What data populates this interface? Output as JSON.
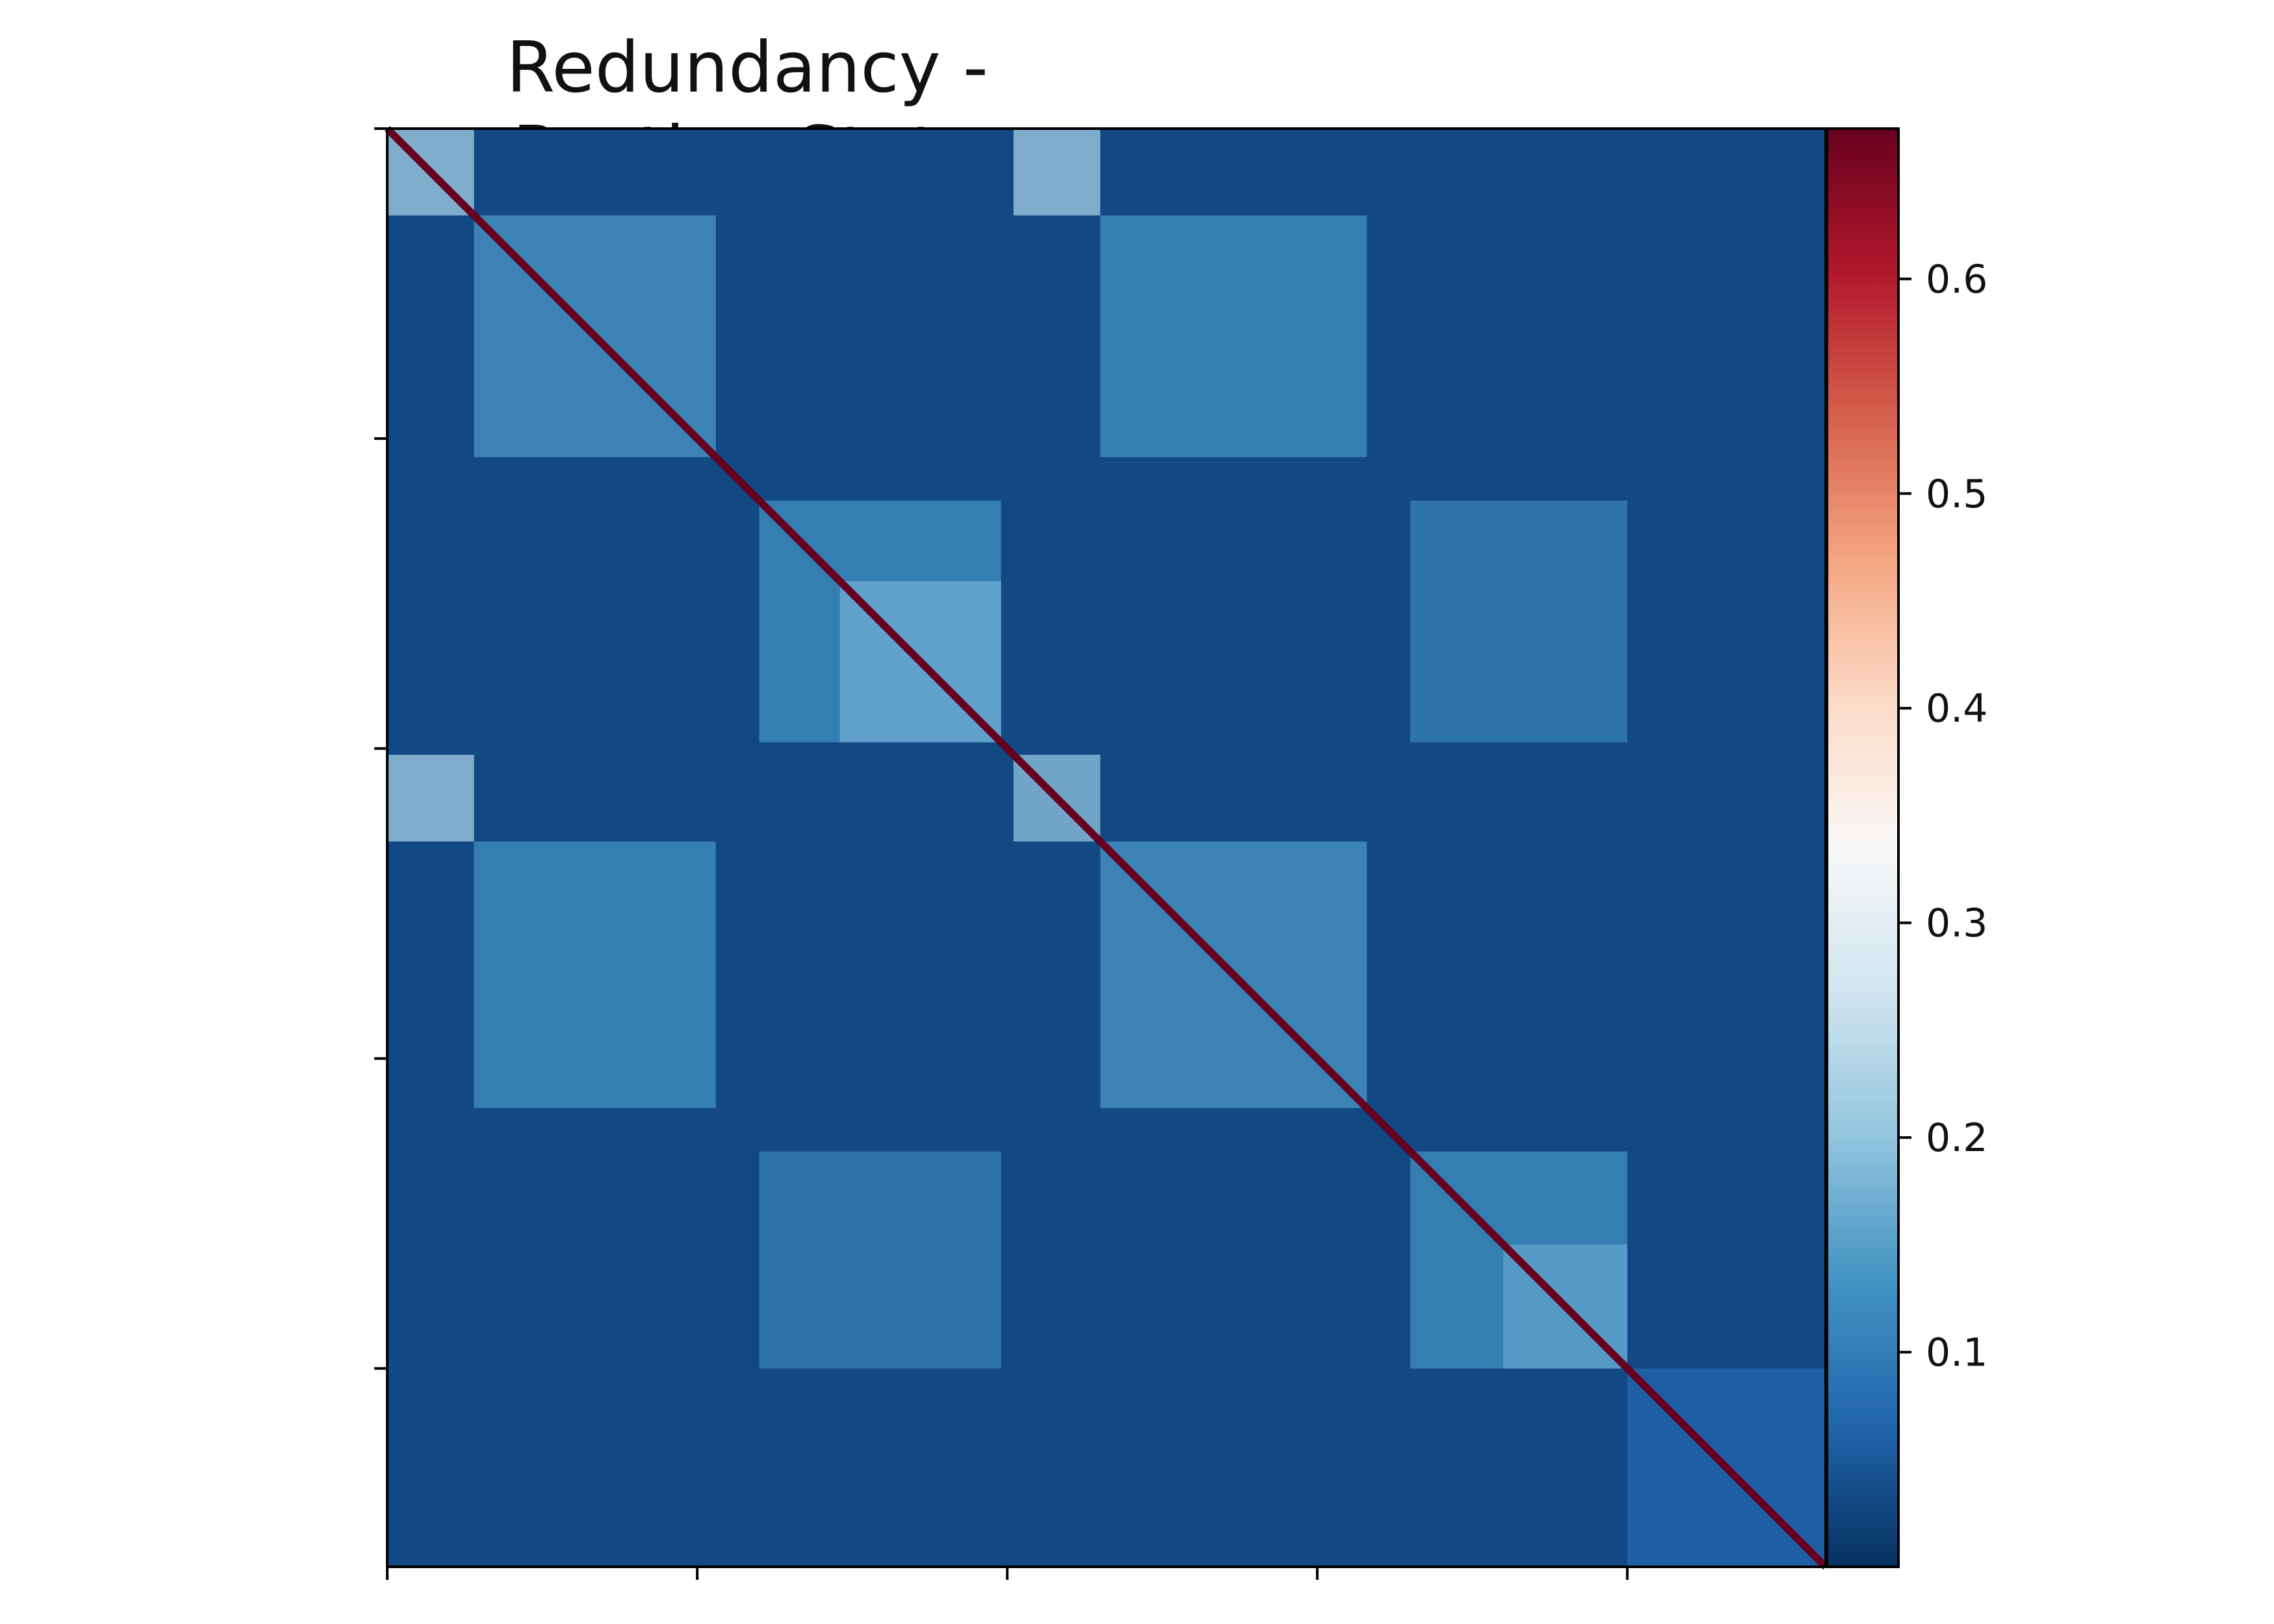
{
  "chart_data": {
    "type": "heatmap",
    "title": "Redundancy - Resting State",
    "xlabel": "",
    "ylabel": "",
    "x_tick_labels": [
      "",
      "",
      "",
      "",
      ""
    ],
    "y_tick_labels": [
      "",
      "",
      "",
      "",
      ""
    ],
    "matrix_size": 232,
    "colormap": "RdBu_r",
    "diagonal_value": 0.67,
    "background_value": 0.03,
    "colorbar": {
      "range": [
        0.0,
        0.67
      ],
      "ticks": [
        0.1,
        0.2,
        0.3,
        0.4,
        0.5,
        0.6
      ],
      "tick_labels": [
        "0.1",
        "0.2",
        "0.3",
        "0.4",
        "0.5",
        "0.6"
      ]
    },
    "clusters": [
      {
        "rows": [
          0,
          14
        ],
        "cols": [
          0,
          14
        ],
        "value": 0.22
      },
      {
        "rows": [
          0,
          14
        ],
        "cols": [
          101,
          115
        ],
        "value": 0.22
      },
      {
        "rows": [
          101,
          115
        ],
        "cols": [
          0,
          14
        ],
        "value": 0.22
      },
      {
        "rows": [
          101,
          115
        ],
        "cols": [
          101,
          115
        ],
        "value": 0.2
      },
      {
        "rows": [
          14,
          53
        ],
        "cols": [
          14,
          53
        ],
        "value": 0.14
      },
      {
        "rows": [
          14,
          53
        ],
        "cols": [
          115,
          158
        ],
        "value": 0.13
      },
      {
        "rows": [
          115,
          158
        ],
        "cols": [
          14,
          53
        ],
        "value": 0.13
      },
      {
        "rows": [
          115,
          158
        ],
        "cols": [
          115,
          158
        ],
        "value": 0.14
      },
      {
        "rows": [
          60,
          99
        ],
        "cols": [
          60,
          99
        ],
        "value": 0.13
      },
      {
        "rows": [
          60,
          99
        ],
        "cols": [
          165,
          200
        ],
        "value": 0.11
      },
      {
        "rows": [
          165,
          200
        ],
        "cols": [
          60,
          99
        ],
        "value": 0.11
      },
      {
        "rows": [
          165,
          200
        ],
        "cols": [
          165,
          200
        ],
        "value": 0.13
      },
      {
        "rows": [
          73,
          99
        ],
        "cols": [
          73,
          99
        ],
        "value": 0.17
      },
      {
        "rows": [
          180,
          200
        ],
        "cols": [
          180,
          200
        ],
        "value": 0.16
      },
      {
        "rows": [
          200,
          232
        ],
        "cols": [
          200,
          232
        ],
        "value": 0.07
      }
    ]
  }
}
